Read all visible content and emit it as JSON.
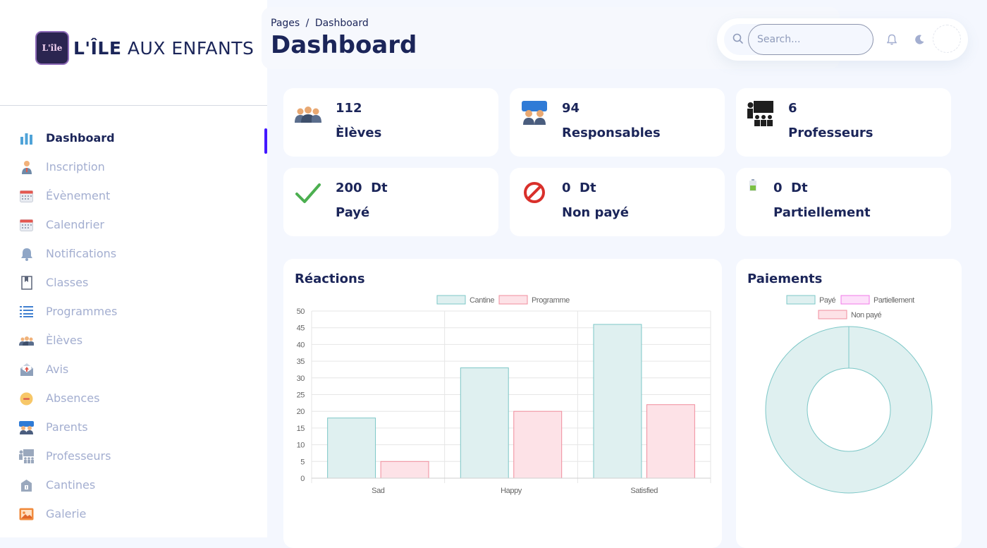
{
  "brand": {
    "logo_text": "L'île",
    "name_bold": "L'ÎLE",
    "name_rest": " AUX ENFANTS"
  },
  "sidebar": {
    "items": [
      {
        "label": "Dashboard",
        "icon": "bar-chart-icon",
        "active": true
      },
      {
        "label": "Inscription",
        "icon": "person-icon"
      },
      {
        "label": "Évènement",
        "icon": "calendar-icon"
      },
      {
        "label": "Calendrier",
        "icon": "calendar-icon"
      },
      {
        "label": "Notifications",
        "icon": "bell-icon"
      },
      {
        "label": "Classes",
        "icon": "book-icon"
      },
      {
        "label": "Programmes",
        "icon": "list-icon"
      },
      {
        "label": "Èlèves",
        "icon": "group-icon"
      },
      {
        "label": "Avis",
        "icon": "mail-icon"
      },
      {
        "label": "Absences",
        "icon": "no-entry-icon"
      },
      {
        "label": "Parents",
        "icon": "parents-icon"
      },
      {
        "label": "Professeurs",
        "icon": "teacher-icon"
      },
      {
        "label": "Cantines",
        "icon": "canteen-icon"
      },
      {
        "label": "Galerie",
        "icon": "gallery-icon"
      }
    ]
  },
  "header": {
    "breadcrumb": [
      "Pages",
      "/",
      "Dashboard"
    ],
    "title": "Dashboard",
    "search_placeholder": "Search..."
  },
  "stats": [
    {
      "value": "112",
      "label": "Èlèves",
      "icon": "group-icon"
    },
    {
      "value": "94",
      "label": "Responsables",
      "icon": "parents-icon"
    },
    {
      "value": "6",
      "label": "Professeurs",
      "icon": "teacher-icon"
    },
    {
      "value": "200  Dt",
      "label": "Payé",
      "icon": "check-icon"
    },
    {
      "value": "0  Dt",
      "label": "Non payé",
      "icon": "prohibited-icon"
    },
    {
      "value": "0  Dt",
      "label": "Partiellement",
      "icon": "battery-icon"
    }
  ],
  "colors": {
    "accent": "#4318ff",
    "text": "#1b2559",
    "muted": "#a3aed0",
    "cantine_fill": "#dff0f0",
    "cantine_stroke": "#7cc7c7",
    "programme_fill": "#fde2e7",
    "programme_stroke": "#f08c9c",
    "partiel_fill": "#fde0fa",
    "partiel_stroke": "#f07ae8"
  },
  "chart_data": [
    {
      "type": "bar",
      "title": "Réactions",
      "categories": [
        "Sad",
        "Happy",
        "Satisfied"
      ],
      "series": [
        {
          "name": "Cantine",
          "values": [
            18,
            33,
            46
          ]
        },
        {
          "name": "Programme",
          "values": [
            5,
            20,
            22
          ]
        }
      ],
      "ylim": [
        0,
        50
      ],
      "yticks": [
        0,
        5,
        10,
        15,
        20,
        25,
        30,
        35,
        40,
        45,
        50
      ],
      "legend": "top",
      "grid": true
    },
    {
      "type": "pie",
      "title": "Paiements",
      "labels": [
        "Payé",
        "Partiellement",
        "Non payé"
      ],
      "values": [
        200,
        0,
        0
      ],
      "legend": "top"
    }
  ]
}
